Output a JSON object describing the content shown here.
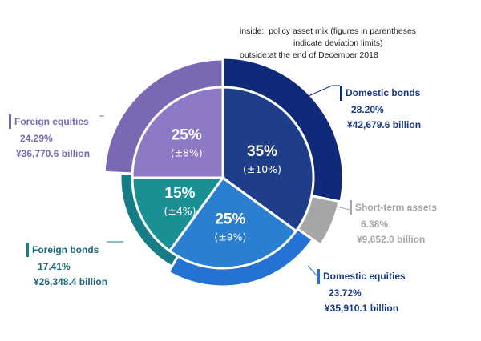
{
  "chart_data": {
    "type": "pie",
    "subtype": "nested-donut",
    "legend_notes": {
      "inside_key": "inside",
      "inside_text": "policy asset mix (figures in parentheses",
      "inside_text_2": "indicate deviation limits)",
      "outside_key": "outside",
      "outside_text": "at the end of December 2018"
    },
    "inner": [
      {
        "name": "Domestic bonds",
        "value": 35,
        "label": "35%",
        "deviation": "(±10%)",
        "color": "#1f3e8a"
      },
      {
        "name": "Domestic equities",
        "value": 25,
        "label": "25%",
        "deviation": "(±9%)",
        "color": "#2a7fd0"
      },
      {
        "name": "Foreign bonds",
        "value": 15,
        "label": "15%",
        "deviation": "(±4%)",
        "color": "#1a8f94"
      },
      {
        "name": "Foreign equities",
        "value": 25,
        "label": "25%",
        "deviation": "(±8%)",
        "color": "#8c78c4"
      }
    ],
    "outer": [
      {
        "name": "Domestic bonds",
        "value": 28.2,
        "percent": "28.20%",
        "amount": "¥42,679.6 billion",
        "color": "#0f2a78",
        "text_color": "#1a3a80"
      },
      {
        "name": "Short-term assets",
        "value": 6.38,
        "percent": "6.38%",
        "amount": "¥9,652.0 billion",
        "color": "#a6a6a6",
        "text_color": "#a6a6a6"
      },
      {
        "name": "Domestic equities",
        "value": 23.72,
        "percent": "23.72%",
        "amount": "¥35,910.1 billion",
        "color": "#2473d2",
        "text_color": "#1a3a80"
      },
      {
        "name": "Foreign bonds",
        "value": 17.41,
        "percent": "17.41%",
        "amount": "¥26,348.4 billion",
        "color": "#167c86",
        "text_color": "#1a6b78"
      },
      {
        "name": "Foreign equities",
        "value": 24.29,
        "percent": "24.29%",
        "amount": "¥36,770.6 billion",
        "color": "#7a68b5",
        "text_color": "#7a68b5"
      }
    ]
  }
}
